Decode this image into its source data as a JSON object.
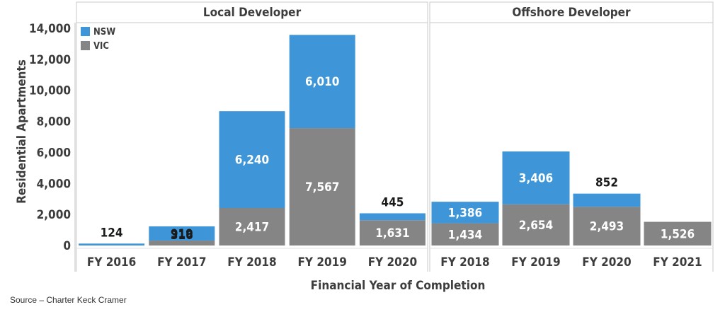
{
  "chart_data": {
    "type": "bar",
    "stacked": true,
    "ylabel": "Residential Apartments",
    "xlabel": "Financial Year of Completion",
    "ylim": [
      0,
      15000
    ],
    "yticks": [
      0,
      2000,
      4000,
      6000,
      8000,
      10000,
      12000,
      14000
    ],
    "ytick_labels": [
      "0",
      "2,000",
      "4,000",
      "6,000",
      "8,000",
      "10,000",
      "12,000",
      "14,000"
    ],
    "legend": {
      "position": "top-left",
      "entries": [
        {
          "name": "NSW",
          "color": "#3e96d8"
        },
        {
          "name": "VIC",
          "color": "#858585"
        }
      ]
    },
    "panels": [
      {
        "title": "Local Developer",
        "categories": [
          "FY 2016",
          "FY 2017",
          "FY 2018",
          "FY 2019",
          "FY 2020"
        ],
        "series": [
          {
            "name": "VIC",
            "values": [
              0,
              316,
              2417,
              7567,
              1631
            ],
            "labels": [
              "",
              "316",
              "2,417",
              "7,567",
              "1,631"
            ]
          },
          {
            "name": "NSW",
            "values": [
              124,
              919,
              6240,
              6010,
              445
            ],
            "labels": [
              "124",
              "919",
              "6,240",
              "6,010",
              "445"
            ]
          }
        ]
      },
      {
        "title": "Offshore Developer",
        "categories": [
          "FY 2018",
          "FY 2019",
          "FY 2020",
          "FY 2021"
        ],
        "series": [
          {
            "name": "VIC",
            "values": [
              1434,
              2654,
              2493,
              1526
            ],
            "labels": [
              "1,434",
              "2,654",
              "2,493",
              "1,526"
            ]
          },
          {
            "name": "NSW",
            "values": [
              1386,
              3406,
              852,
              0
            ],
            "labels": [
              "1,386",
              "3,406",
              "852",
              ""
            ]
          }
        ]
      }
    ]
  },
  "source": "Source – Charter Keck Cramer"
}
